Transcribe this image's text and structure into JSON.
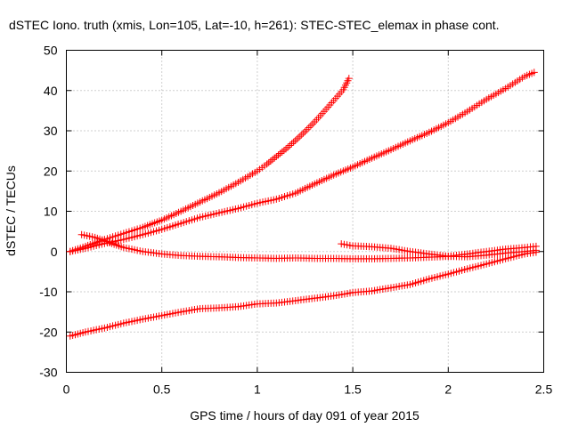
{
  "chart_data": {
    "type": "scatter",
    "title": "dSTEC Iono. truth (xmis, Lon=105, Lat=-10, h=261): STEC-STEC_elemax in phase cont.",
    "xlabel": "GPS time / hours of day 091 of year 2015",
    "ylabel": "dSTEC  / TECUs",
    "xlim": [
      0,
      2.5
    ],
    "ylim": [
      -30,
      50
    ],
    "xticks": [
      0,
      0.5,
      1,
      1.5,
      2,
      2.5
    ],
    "xtick_labels": [
      "0",
      "0.5",
      "1",
      "1.5",
      "2",
      "2.5"
    ],
    "yticks": [
      -30,
      -20,
      -10,
      0,
      10,
      20,
      30,
      40,
      50
    ],
    "ytick_labels": [
      "-30",
      "-20",
      "-10",
      "0",
      "10",
      "20",
      "30",
      "40",
      "50"
    ],
    "grid": true,
    "marker": "plus",
    "color": "#ff0000",
    "series": [
      {
        "x": [
          0.02,
          0.1,
          0.2,
          0.3,
          0.4,
          0.5,
          0.6,
          0.7,
          0.8,
          0.9,
          1.0,
          1.05,
          1.1,
          1.15,
          1.2,
          1.25,
          1.3,
          1.35,
          1.4,
          1.45,
          1.48
        ],
        "y": [
          0.0,
          1.3,
          3.0,
          4.5,
          6.0,
          7.8,
          10.0,
          12.3,
          14.6,
          17.2,
          20.0,
          21.7,
          23.6,
          25.5,
          27.6,
          29.8,
          32.2,
          34.8,
          37.5,
          40.2,
          43.0
        ]
      },
      {
        "x": [
          0.02,
          0.1,
          0.2,
          0.3,
          0.4,
          0.5,
          0.6,
          0.7,
          0.8,
          0.9,
          1.0,
          1.1,
          1.2,
          1.3,
          1.4,
          1.5,
          1.6,
          1.7,
          1.8,
          1.9,
          2.0,
          2.1,
          2.2,
          2.3,
          2.4,
          2.45
        ],
        "y": [
          0.0,
          0.8,
          2.0,
          3.0,
          4.2,
          5.5,
          7.0,
          8.5,
          9.6,
          10.7,
          12.0,
          13.0,
          14.5,
          16.8,
          19.0,
          21.0,
          23.2,
          25.3,
          27.5,
          29.6,
          32.0,
          34.8,
          37.8,
          40.5,
          43.5,
          44.5
        ]
      },
      {
        "x": [
          0.08,
          0.15,
          0.2,
          0.25,
          0.3,
          0.4,
          0.5,
          0.6,
          0.7,
          0.8,
          0.9,
          1.0,
          1.1,
          1.2,
          1.3,
          1.4,
          1.5,
          1.6,
          1.7,
          1.8,
          1.9,
          2.0,
          2.1,
          2.2,
          2.3,
          2.4,
          2.46
        ],
        "y": [
          4.2,
          3.5,
          2.7,
          1.8,
          1.0,
          0.0,
          -0.6,
          -1.0,
          -1.2,
          -1.3,
          -1.5,
          -1.6,
          -1.7,
          -1.6,
          -1.7,
          -1.7,
          -1.8,
          -1.8,
          -1.7,
          -1.6,
          -1.4,
          -1.2,
          -0.6,
          0.0,
          0.6,
          1.0,
          1.3
        ]
      },
      {
        "x": [
          1.44,
          1.5,
          1.6,
          1.7,
          1.8,
          1.9,
          2.0,
          2.1,
          2.2,
          2.3,
          2.4,
          2.46
        ],
        "y": [
          1.9,
          1.4,
          1.2,
          0.8,
          0.0,
          -0.6,
          -1.2,
          -1.3,
          -0.9,
          -0.4,
          0.0,
          0.3
        ]
      },
      {
        "x": [
          0.02,
          0.1,
          0.2,
          0.3,
          0.4,
          0.5,
          0.6,
          0.7,
          0.8,
          0.9,
          1.0,
          1.1,
          1.2,
          1.3,
          1.4,
          1.5,
          1.6,
          1.7,
          1.8,
          1.9,
          2.0,
          2.1,
          2.2,
          2.3,
          2.4,
          2.46
        ],
        "y": [
          -21.0,
          -20.0,
          -19.0,
          -17.8,
          -16.8,
          -15.9,
          -15.0,
          -14.2,
          -14.0,
          -13.7,
          -13.0,
          -12.8,
          -12.2,
          -11.6,
          -11.0,
          -10.2,
          -9.8,
          -9.0,
          -8.2,
          -6.8,
          -5.6,
          -4.3,
          -3.1,
          -1.8,
          -0.6,
          -0.2
        ]
      }
    ]
  }
}
